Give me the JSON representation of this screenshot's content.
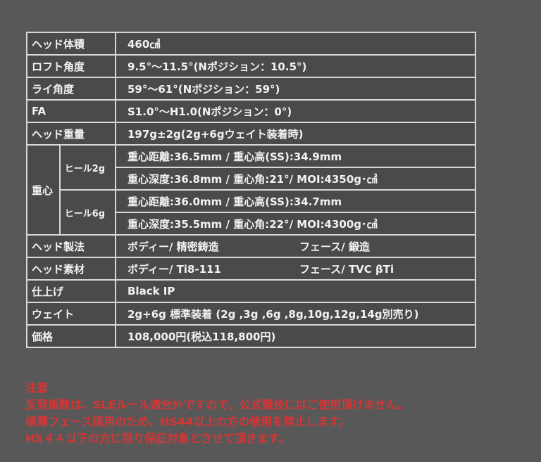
{
  "rows": [
    {
      "label": "ヘッド体積",
      "value": "460㎤"
    },
    {
      "label": "ロフト角度",
      "value": "9.5°〜11.5°(Nポジション：10.5°)"
    },
    {
      "label": "ライ角度",
      "value": "59°〜61°(Nポジション：59°)"
    },
    {
      "label": "FA",
      "value": "S1.0°〜H1.0(Nポジション：0°)"
    },
    {
      "label": "ヘッド重量",
      "value": "197g±2g(2g+6gウェイト装着時)"
    }
  ],
  "cg": {
    "label": "重心",
    "groups": [
      {
        "label": "ヒール2g",
        "lines": [
          "重心距離:36.5mm / 重心高(SS):34.9mm",
          "重心深度:36.8mm / 重心角:21°/ MOI:4350g･㎠"
        ]
      },
      {
        "label": "ヒール6g",
        "lines": [
          "重心距離:36.0mm / 重心高(SS):34.7mm",
          "重心深度:35.5mm / 重心角:22°/ MOI:4300g･㎠"
        ]
      }
    ]
  },
  "rows2": [
    {
      "label": "ヘッド製法",
      "a": "ボディー/ 精密鋳造",
      "b": "フェース/ 鍛造"
    },
    {
      "label": "ヘッド素材",
      "a": "ボディー/ Ti8-111",
      "b": "フェース/ TVC βTi"
    }
  ],
  "rows3": [
    {
      "label": "仕上げ",
      "value": "Black IP"
    },
    {
      "label": "ウェイト",
      "value": "2g+6g 標準装着 (2g ,3g ,6g ,8g,10g,12g,14g別売り)"
    },
    {
      "label": "価格",
      "value": "108,000円(税込118,800円)"
    }
  ],
  "notes": {
    "title": "注意",
    "lines": [
      "反発係数は、SLEルール適合外ですので、公式競技にはご使用頂けません。",
      "極薄フェース採用のため、HS44以上の方の使用を禁止します。",
      "HS４４以下の方に限り保証対象とさせて頂きます。"
    ]
  }
}
